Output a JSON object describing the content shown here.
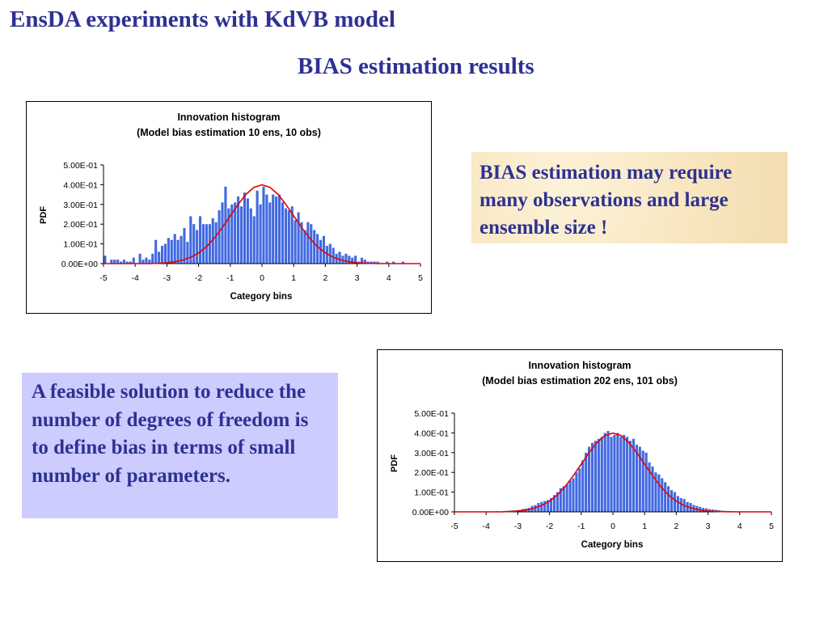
{
  "slide": {
    "title": "EnsDA experiments with KdVB model",
    "subtitle": "BIAS estimation results"
  },
  "notes": {
    "note1": "BIAS estimation may require many observations and large ensemble size !",
    "note2": "A feasible solution to reduce the number of degrees of freedom is to define bias in terms of small number of parameters."
  },
  "colors": {
    "heading": "#2e3192",
    "bar_fill": "#4169e1",
    "curve": "#e60000",
    "note1_bg": "#faecc8",
    "note2_bg": "#ccccff"
  },
  "chart_data": [
    {
      "type": "bar",
      "title": "Innovation histogram",
      "subtitle": "(Model bias estimation 10 ens, 10 obs)",
      "xlabel": "Category bins",
      "ylabel": "PDF",
      "xlim": [
        -5,
        5
      ],
      "ylim": [
        0,
        0.5
      ],
      "xticks": [
        "-5",
        "-4",
        "-3",
        "-2",
        "-1",
        "0",
        "1",
        "2",
        "3",
        "4",
        "5"
      ],
      "yticks": [
        "0.00E+00",
        "1.00E-01",
        "2.00E-01",
        "3.00E-01",
        "4.00E-01",
        "5.00E-01"
      ],
      "grid": false,
      "series": [
        {
          "type": "histogram",
          "x": [
            -5.0,
            -4.9,
            -4.8,
            -4.7,
            -4.6,
            -4.5,
            -4.4,
            -4.3,
            -4.2,
            -4.1,
            -4.0,
            -3.9,
            -3.8,
            -3.7,
            -3.6,
            -3.5,
            -3.4,
            -3.3,
            -3.2,
            -3.1,
            -3.0,
            -2.9,
            -2.8,
            -2.7,
            -2.6,
            -2.5,
            -2.4,
            -2.3,
            -2.2,
            -2.1,
            -2.0,
            -1.9,
            -1.8,
            -1.7,
            -1.6,
            -1.5,
            -1.4,
            -1.3,
            -1.2,
            -1.1,
            -1.0,
            -0.9,
            -0.8,
            -0.7,
            -0.6,
            -0.5,
            -0.4,
            -0.3,
            -0.2,
            -0.1,
            0.0,
            0.1,
            0.2,
            0.3,
            0.4,
            0.5,
            0.6,
            0.7,
            0.8,
            0.9,
            1.0,
            1.1,
            1.2,
            1.3,
            1.4,
            1.5,
            1.6,
            1.7,
            1.8,
            1.9,
            2.0,
            2.1,
            2.2,
            2.3,
            2.4,
            2.5,
            2.6,
            2.7,
            2.8,
            2.9,
            3.0,
            3.1,
            3.2,
            3.3,
            3.4,
            3.5,
            3.6,
            3.7,
            3.8,
            3.9,
            4.0,
            4.1,
            4.2,
            4.3,
            4.4,
            4.5,
            4.6,
            4.7,
            4.8,
            4.9
          ],
          "values": [
            0.04,
            0,
            0.02,
            0.02,
            0.02,
            0.01,
            0.02,
            0.01,
            0.01,
            0.03,
            0,
            0.05,
            0.02,
            0.03,
            0.02,
            0.05,
            0.12,
            0.06,
            0.09,
            0.1,
            0.13,
            0.12,
            0.15,
            0.12,
            0.14,
            0.18,
            0.11,
            0.24,
            0.2,
            0.17,
            0.24,
            0.2,
            0.2,
            0.2,
            0.23,
            0.21,
            0.27,
            0.31,
            0.39,
            0.28,
            0.3,
            0.31,
            0.34,
            0.29,
            0.36,
            0.33,
            0.28,
            0.24,
            0.37,
            0.3,
            0.39,
            0.35,
            0.31,
            0.35,
            0.34,
            0.35,
            0.31,
            0.28,
            0.27,
            0.29,
            0.22,
            0.26,
            0.21,
            0.17,
            0.21,
            0.2,
            0.17,
            0.15,
            0.12,
            0.14,
            0.09,
            0.1,
            0.08,
            0.05,
            0.06,
            0.04,
            0.05,
            0.04,
            0.03,
            0.04,
            0.01,
            0.03,
            0.02,
            0.01,
            0.01,
            0.01,
            0.01,
            0,
            0,
            0.01,
            0,
            0.01,
            0,
            0,
            0.01,
            0,
            0,
            0,
            0,
            0
          ]
        },
        {
          "type": "line",
          "x": [
            -5,
            -4.5,
            -4,
            -3.5,
            -3,
            -2.75,
            -2.5,
            -2.25,
            -2,
            -1.75,
            -1.5,
            -1.25,
            -1,
            -0.75,
            -0.5,
            -0.25,
            0,
            0.25,
            0.5,
            0.75,
            1,
            1.25,
            1.5,
            1.75,
            2,
            2.25,
            2.5,
            2.75,
            3,
            3.5,
            4,
            4.5,
            5
          ],
          "values": [
            0,
            0,
            0,
            0,
            0.004,
            0.009,
            0.018,
            0.032,
            0.054,
            0.086,
            0.13,
            0.183,
            0.242,
            0.301,
            0.352,
            0.387,
            0.399,
            0.387,
            0.352,
            0.301,
            0.242,
            0.183,
            0.13,
            0.086,
            0.054,
            0.032,
            0.018,
            0.009,
            0.004,
            0.001,
            0,
            0,
            0
          ]
        }
      ]
    },
    {
      "type": "bar",
      "title": "Innovation histogram",
      "subtitle": "(Model bias estimation 202 ens, 101 obs)",
      "xlabel": "Category bins",
      "ylabel": "PDF",
      "xlim": [
        -5,
        5
      ],
      "ylim": [
        0,
        0.5
      ],
      "xticks": [
        "-5",
        "-4",
        "-3",
        "-2",
        "-1",
        "0",
        "1",
        "2",
        "3",
        "4",
        "5"
      ],
      "yticks": [
        "0.00E+00",
        "1.00E-01",
        "2.00E-01",
        "3.00E-01",
        "4.00E-01",
        "5.00E-01"
      ],
      "grid": false,
      "series": [
        {
          "type": "histogram",
          "x": [
            -5.0,
            -4.9,
            -4.8,
            -4.7,
            -4.6,
            -4.5,
            -4.4,
            -4.3,
            -4.2,
            -4.1,
            -4.0,
            -3.9,
            -3.8,
            -3.7,
            -3.6,
            -3.5,
            -3.4,
            -3.3,
            -3.2,
            -3.1,
            -3.0,
            -2.9,
            -2.8,
            -2.7,
            -2.6,
            -2.5,
            -2.4,
            -2.3,
            -2.2,
            -2.1,
            -2.0,
            -1.9,
            -1.8,
            -1.7,
            -1.6,
            -1.5,
            -1.4,
            -1.3,
            -1.2,
            -1.1,
            -1.0,
            -0.9,
            -0.8,
            -0.7,
            -0.6,
            -0.5,
            -0.4,
            -0.3,
            -0.2,
            -0.1,
            0.0,
            0.1,
            0.2,
            0.3,
            0.4,
            0.5,
            0.6,
            0.7,
            0.8,
            0.9,
            1.0,
            1.1,
            1.2,
            1.3,
            1.4,
            1.5,
            1.6,
            1.7,
            1.8,
            1.9,
            2.0,
            2.1,
            2.2,
            2.3,
            2.4,
            2.5,
            2.6,
            2.7,
            2.8,
            2.9,
            3.0,
            3.1,
            3.2,
            3.3,
            3.4,
            3.5,
            3.6,
            3.7,
            3.8,
            3.9,
            4.0,
            4.1,
            4.2,
            4.3,
            4.4,
            4.5,
            4.6,
            4.7,
            4.8,
            4.9
          ],
          "values": [
            0,
            0,
            0,
            0,
            0,
            0,
            0,
            0,
            0,
            0,
            0.002,
            0.001,
            0.002,
            0.003,
            0.002,
            0.004,
            0.005,
            0.006,
            0.007,
            0.008,
            0.01,
            0.014,
            0.016,
            0.02,
            0.03,
            0.034,
            0.045,
            0.05,
            0.055,
            0.06,
            0.07,
            0.085,
            0.1,
            0.12,
            0.13,
            0.14,
            0.16,
            0.17,
            0.2,
            0.22,
            0.26,
            0.3,
            0.33,
            0.35,
            0.36,
            0.37,
            0.38,
            0.4,
            0.41,
            0.38,
            0.39,
            0.4,
            0.38,
            0.39,
            0.38,
            0.36,
            0.37,
            0.34,
            0.33,
            0.31,
            0.3,
            0.25,
            0.23,
            0.2,
            0.19,
            0.17,
            0.15,
            0.13,
            0.11,
            0.1,
            0.08,
            0.07,
            0.065,
            0.05,
            0.045,
            0.035,
            0.03,
            0.025,
            0.02,
            0.018,
            0.014,
            0.012,
            0.01,
            0.008,
            0.006,
            0.005,
            0.004,
            0.003,
            0.002,
            0.002,
            0.001,
            0.001,
            0,
            0,
            0,
            0,
            0,
            0,
            0,
            0
          ]
        },
        {
          "type": "line",
          "x": [
            -5,
            -4.5,
            -4,
            -3.5,
            -3,
            -2.75,
            -2.5,
            -2.25,
            -2,
            -1.75,
            -1.5,
            -1.25,
            -1,
            -0.75,
            -0.5,
            -0.25,
            0,
            0.25,
            0.5,
            0.75,
            1,
            1.25,
            1.5,
            1.75,
            2,
            2.25,
            2.5,
            2.75,
            3,
            3.5,
            4,
            4.5,
            5
          ],
          "values": [
            0,
            0,
            0,
            0,
            0.004,
            0.009,
            0.018,
            0.032,
            0.054,
            0.086,
            0.13,
            0.183,
            0.242,
            0.301,
            0.352,
            0.387,
            0.399,
            0.387,
            0.352,
            0.301,
            0.242,
            0.183,
            0.13,
            0.086,
            0.054,
            0.032,
            0.018,
            0.009,
            0.004,
            0.001,
            0,
            0,
            0
          ]
        }
      ]
    }
  ]
}
